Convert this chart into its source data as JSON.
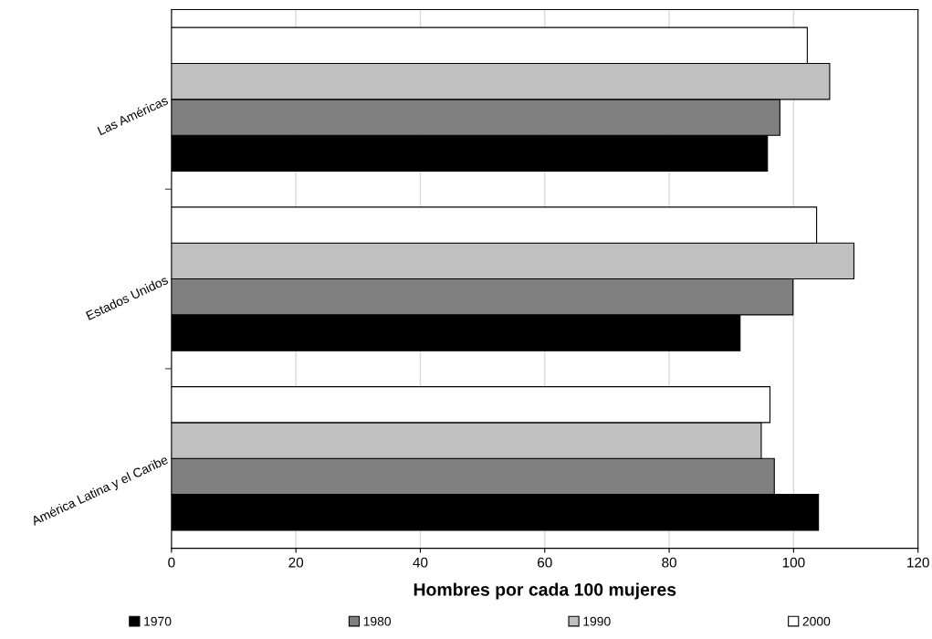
{
  "chart_data": {
    "type": "bar",
    "orientation": "horizontal",
    "xlabel": "Hombres por cada 100 mujeres",
    "categories": [
      "Las Américas",
      "Estados Unidos",
      "América Latina y el Caribe"
    ],
    "series": [
      {
        "name": "1970",
        "color": "#000000",
        "values": [
          95.8,
          91.4,
          104.0
        ]
      },
      {
        "name": "1980",
        "color": "#808080",
        "values": [
          97.8,
          99.9,
          96.9
        ]
      },
      {
        "name": "1990",
        "color": "#c0c0c0",
        "values": [
          105.8,
          109.7,
          94.8
        ]
      },
      {
        "name": "2000",
        "color": "#ffffff",
        "values": [
          102.2,
          103.7,
          96.2
        ]
      }
    ],
    "xlim": [
      0,
      120
    ],
    "xticks": [
      0,
      20,
      40,
      60,
      80,
      100,
      120
    ],
    "grid": "x",
    "legend": "bottom"
  }
}
